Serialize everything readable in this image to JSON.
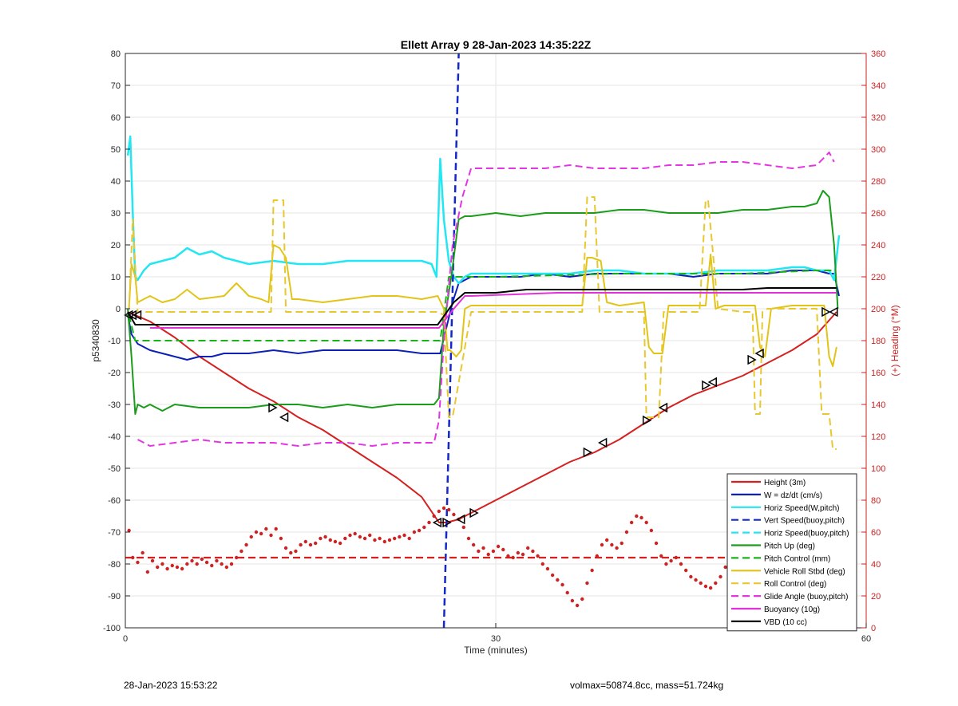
{
  "footer": {
    "timestamp": "28-Jan-2023 15:53:22",
    "summary": "volmax=50874.8cc, mass=51.724kg"
  },
  "chart_data": {
    "type": "line",
    "title": "Ellett Array 9 28-Jan-2023 14:35:22Z",
    "xlabel": "Time (minutes)",
    "ylabel": "p5340830",
    "ylabel_right": "(+) Heading (°M)",
    "xlim": [
      0,
      60
    ],
    "ylim": [
      -100,
      80
    ],
    "ylim_right": [
      0,
      360
    ],
    "x_ticks": [
      0,
      30,
      60
    ],
    "y_ticks": [
      -100,
      -90,
      -80,
      -70,
      -60,
      -50,
      -40,
      -30,
      -20,
      -10,
      0,
      10,
      20,
      30,
      40,
      50,
      60,
      70,
      80
    ],
    "y_right_ticks": [
      0,
      20,
      40,
      60,
      80,
      100,
      120,
      140,
      160,
      180,
      200,
      220,
      240,
      260,
      280,
      300,
      320,
      340,
      360
    ],
    "grid": true,
    "legend_position": "bottom-right",
    "colors": {
      "height": "#d62020",
      "w": "#0c1fb8",
      "horiz": "#22e6f2",
      "vert": "#1428c8",
      "pitch": "#1c9c1c",
      "pitch_control": "#18b418",
      "roll": "#e2c418",
      "roll_control": "#e8c830",
      "glide": "#e236e2",
      "buoyancy": "#e032d8",
      "vbd": "#000000",
      "heading": "#d02020",
      "right_axis": "#cc2020"
    },
    "legend": [
      {
        "label": "Height (3m)",
        "key": "height",
        "dash": false
      },
      {
        "label": "W = dz/dt (cm/s)",
        "key": "w",
        "dash": false
      },
      {
        "label": "Horiz Speed(W,pitch)",
        "key": "horiz",
        "dash": false
      },
      {
        "label": "Vert Speed(buoy,pitch)",
        "key": "vert",
        "dash": true
      },
      {
        "label": "Horiz Speed(buoy,pitch)",
        "key": "horiz",
        "dash": true
      },
      {
        "label": "Pitch Up (deg)",
        "key": "pitch",
        "dash": false
      },
      {
        "label": "Pitch Control (mm)",
        "key": "pitch_control",
        "dash": true
      },
      {
        "label": "Vehicle Roll Stbd (deg)",
        "key": "roll",
        "dash": false
      },
      {
        "label": "Roll Control (deg)",
        "key": "roll_control",
        "dash": true
      },
      {
        "label": "Glide Angle (buoy,pitch)",
        "key": "glide",
        "dash": true
      },
      {
        "label": "Buoyancy (10g)",
        "key": "buoyancy",
        "dash": false
      },
      {
        "label": "VBD (10 cc)",
        "key": "vbd",
        "dash": false
      }
    ],
    "series": [
      {
        "key": "height",
        "dash": false,
        "width": 2,
        "x": [
          0.2,
          2,
          4,
          6,
          8,
          10,
          12,
          14,
          16,
          18,
          20,
          22,
          24,
          25.4,
          26,
          27,
          28,
          30,
          32,
          34,
          36,
          38,
          40,
          42,
          44,
          46,
          48,
          50,
          52,
          54,
          56,
          57.6
        ],
        "y": [
          -1,
          -4,
          -9,
          -15,
          -20,
          -25,
          -29,
          -34,
          -38,
          -43,
          -48,
          -53,
          -59,
          -67,
          -67,
          -66,
          -64,
          -60,
          -56,
          -52,
          -48,
          -45,
          -41,
          -36,
          -31,
          -27,
          -24,
          -21,
          -17,
          -13,
          -8,
          -1
        ]
      },
      {
        "key": "w",
        "dash": false,
        "width": 2,
        "x": [
          0.2,
          0.5,
          1,
          2,
          3,
          4,
          5,
          6,
          7,
          8,
          10,
          12,
          14,
          16,
          18,
          20,
          22,
          24,
          25,
          25.5,
          26,
          26.5,
          27,
          27.5,
          28,
          30,
          32,
          34,
          36,
          38,
          40,
          42,
          44,
          46,
          48,
          50,
          52,
          54,
          55,
          56,
          57,
          57.4,
          57.8
        ],
        "y": [
          -2,
          -8,
          -11,
          -13,
          -14,
          -15,
          -16,
          -15,
          -15,
          -14,
          -14,
          -13,
          -14,
          -13,
          -13,
          -13,
          -13,
          -14,
          -14,
          -14,
          -6,
          2,
          8,
          9,
          10,
          10,
          10,
          11,
          10,
          11,
          11,
          11,
          11,
          10,
          11,
          11,
          11,
          12,
          12,
          12,
          11,
          11,
          4
        ]
      },
      {
        "key": "horiz",
        "dash": false,
        "width": 2.5,
        "x": [
          0.2,
          0.4,
          0.6,
          0.8,
          1,
          1.5,
          2,
          3,
          4,
          5,
          6,
          7,
          8,
          10,
          12,
          14,
          16,
          18,
          20,
          22,
          24,
          24.8,
          25.2,
          25.5,
          25.8,
          26.2,
          26.6,
          27,
          27.5,
          28,
          30,
          32,
          34,
          36,
          38,
          40,
          42,
          44,
          46,
          48,
          50,
          52,
          54,
          55,
          56,
          57,
          57.4,
          57.8
        ],
        "y": [
          48,
          54,
          30,
          10,
          9,
          12,
          14,
          15,
          16,
          19,
          17,
          18,
          16,
          14,
          15,
          14,
          14,
          15,
          15,
          15,
          15,
          14,
          10,
          47,
          28,
          15,
          10,
          8,
          10,
          11,
          11,
          11,
          11,
          11,
          12,
          12,
          11,
          11,
          11,
          12,
          12,
          12,
          13,
          13,
          12,
          12,
          9,
          23
        ]
      },
      {
        "key": "vert",
        "dash": true,
        "width": 2.5,
        "x": [
          25.8,
          27
        ],
        "y": [
          -100,
          80
        ]
      },
      {
        "key": "pitch",
        "dash": false,
        "width": 2,
        "x": [
          0.2,
          0.5,
          0.8,
          1,
          1.5,
          2,
          3,
          4,
          6,
          8,
          10,
          12,
          14,
          16,
          18,
          20,
          22,
          24,
          25,
          25.4,
          25.8,
          26.4,
          27,
          27.5,
          28,
          30,
          32,
          34,
          36,
          38,
          40,
          42,
          44,
          46,
          48,
          50,
          52,
          54,
          55,
          56,
          56.5,
          57,
          57.4,
          57.7
        ],
        "y": [
          0,
          -15,
          -33,
          -30,
          -31,
          -30,
          -32,
          -30,
          -31,
          -31,
          -31,
          -30,
          -30,
          -31,
          -30,
          -31,
          -30,
          -30,
          -30,
          -28,
          -5,
          10,
          28,
          29,
          29,
          30,
          29,
          30,
          30,
          30,
          31,
          31,
          30,
          30,
          30,
          31,
          31,
          32,
          32,
          33,
          37,
          35,
          20,
          0
        ]
      },
      {
        "key": "pitch_control",
        "dash": true,
        "width": 2,
        "x": [
          0.3,
          0.8,
          2,
          10,
          20,
          25.5,
          26.2,
          30,
          40,
          50,
          56,
          57.5
        ],
        "y": [
          -2,
          -10,
          -10,
          -10,
          -10,
          -10,
          10,
          10,
          11,
          11,
          12,
          12
        ]
      },
      {
        "key": "roll",
        "dash": false,
        "width": 2,
        "x": [
          0.3,
          0.5,
          0.8,
          1,
          2,
          3,
          4,
          5,
          6,
          8,
          9,
          10,
          11,
          11.6,
          12,
          12.5,
          13,
          13.5,
          14,
          16,
          18,
          20,
          22,
          24,
          25.3,
          25.8,
          26.1,
          26.3,
          26.8,
          27.2,
          27.5,
          28,
          30,
          32,
          34,
          36,
          37,
          37.4,
          37.8,
          38.5,
          39,
          40,
          42,
          42.4,
          42.8,
          43.5,
          44,
          46,
          47,
          47.4,
          47.8,
          48.5,
          50,
          51,
          51.4,
          51.8,
          52.3,
          54,
          56,
          56.6,
          57,
          57.3,
          57.6
        ],
        "y": [
          0,
          14,
          10,
          2,
          4,
          2,
          3,
          6,
          3,
          4,
          8,
          4,
          3,
          2,
          20,
          19,
          16,
          3,
          3,
          2,
          3,
          4,
          4,
          3,
          4,
          0,
          -13,
          -13,
          -15,
          -13,
          0,
          1,
          1,
          1,
          1,
          1,
          1,
          16,
          16,
          15,
          2,
          1,
          2,
          -12,
          -14,
          -14,
          1,
          1,
          1,
          17,
          0,
          1,
          1,
          1,
          -12,
          -15,
          0,
          1,
          1,
          1,
          -15,
          -18,
          -12
        ]
      },
      {
        "key": "roll_control",
        "dash": true,
        "width": 2,
        "x": [
          0.3,
          0.6,
          1,
          2,
          10,
          11.8,
          12,
          12.8,
          13,
          14,
          25.3,
          25.8,
          26.2,
          26.5,
          28,
          29,
          36,
          37,
          37.4,
          38,
          38.4,
          39,
          42,
          42.2,
          42.6,
          43.2,
          43.6,
          44,
          46,
          46.5,
          47,
          47.2,
          48,
          50,
          50.8,
          51,
          51.4,
          51.6,
          52,
          56,
          56.4,
          57,
          57.3,
          57.6
        ],
        "y": [
          0,
          28,
          -1,
          -1,
          -1,
          -1,
          34,
          34,
          -1,
          -1,
          -1,
          -2,
          -34,
          -34,
          -1,
          -1,
          -1,
          -1,
          35,
          35,
          -1,
          -1,
          -1,
          -34,
          -34,
          -34,
          -1,
          -1,
          -1,
          -1,
          34,
          34,
          0,
          -1,
          -1,
          -33,
          -33,
          -1,
          0,
          0,
          -33,
          -33,
          -44,
          -44
        ]
      },
      {
        "key": "glide",
        "dash": true,
        "width": 2,
        "x": [
          1,
          2,
          4,
          6,
          8,
          10,
          12,
          14,
          16,
          18,
          20,
          22,
          24,
          25,
          25.4,
          25.8,
          26.5,
          27.3,
          28,
          30,
          32,
          34,
          36,
          38,
          40,
          42,
          44,
          46,
          48,
          50,
          52,
          54,
          56,
          57,
          57.4
        ],
        "y": [
          -41,
          -43,
          -42,
          -41,
          -42,
          -42,
          -42,
          -43,
          -42,
          -42,
          -43,
          -42,
          -42,
          -42,
          -35,
          -10,
          20,
          35,
          44,
          44,
          44,
          44,
          45,
          44,
          44,
          44,
          45,
          45,
          46,
          46,
          45,
          44,
          45,
          49,
          46
        ]
      },
      {
        "key": "buoyancy",
        "dash": false,
        "width": 2,
        "x": [
          2,
          10,
          20,
          25.4,
          26.6,
          27.5,
          28,
          35,
          45,
          57.6
        ],
        "y": [
          -6,
          -6,
          -6,
          -6,
          0,
          4,
          4,
          5,
          5,
          5
        ]
      },
      {
        "key": "vbd",
        "dash": false,
        "width": 2,
        "x": [
          0.2,
          0.8,
          2,
          10,
          20,
          25.3,
          26.6,
          27.5,
          30,
          32.5,
          34,
          40,
          44,
          48,
          50,
          52,
          57.6
        ],
        "y": [
          -1,
          -5,
          -5,
          -5,
          -5,
          -5,
          2,
          5,
          5,
          6,
          6,
          6,
          6,
          6,
          6,
          6.5,
          6.5
        ]
      },
      {
        "key": "height_ref",
        "color_key": "height",
        "dash": true,
        "width": 2.2,
        "x": [
          0,
          57.6
        ],
        "y": [
          -78,
          -78
        ]
      }
    ],
    "heading_points": {
      "axis": "right",
      "x": [
        0.3,
        0.6,
        1,
        1.4,
        1.8,
        2.2,
        2.6,
        3,
        3.4,
        3.8,
        4.2,
        4.6,
        5,
        5.4,
        5.8,
        6.2,
        6.6,
        7,
        7.4,
        7.8,
        8.2,
        8.6,
        9,
        9.4,
        9.8,
        10.2,
        10.6,
        11,
        11.4,
        11.8,
        12.2,
        12.6,
        13,
        13.4,
        13.8,
        14.2,
        14.6,
        15,
        15.4,
        15.8,
        16.2,
        16.6,
        17,
        17.4,
        17.8,
        18.2,
        18.6,
        19,
        19.4,
        19.8,
        20.2,
        20.6,
        21,
        21.4,
        21.8,
        22.2,
        22.6,
        23,
        23.4,
        23.8,
        24.2,
        24.6,
        25,
        25.4,
        25.8,
        26.2,
        26.6,
        27,
        27.4,
        27.8,
        28.2,
        28.6,
        29,
        29.4,
        29.8,
        30.2,
        30.6,
        31,
        31.4,
        31.8,
        32.2,
        32.6,
        33,
        33.4,
        33.8,
        34.2,
        34.6,
        35,
        35.4,
        35.8,
        36.2,
        36.6,
        37,
        37.4,
        37.8,
        38.2,
        38.6,
        39,
        39.4,
        39.8,
        40.2,
        40.6,
        41,
        41.4,
        41.8,
        42.2,
        42.6,
        43,
        43.4,
        43.8,
        44.2,
        44.6,
        45,
        45.4,
        45.8,
        46.2,
        46.6,
        47,
        47.4,
        47.8,
        48.2,
        48.6,
        49,
        49.4,
        49.8,
        50.2,
        50.6,
        51,
        51.4,
        51.8,
        52.2,
        52.6,
        53,
        53.4,
        53.8,
        54.2,
        54.6,
        55,
        55.4,
        55.8,
        56.2,
        56.6,
        57,
        57.4
      ],
      "y": [
        61,
        44,
        41,
        47,
        35,
        42,
        38,
        40,
        37,
        39,
        38,
        37,
        40,
        42,
        40,
        43,
        41,
        39,
        42,
        40,
        38,
        40,
        44,
        48,
        52,
        57,
        60,
        59,
        62,
        58,
        62,
        56,
        50,
        47,
        48,
        52,
        54,
        52,
        53,
        56,
        57,
        55,
        54,
        53,
        56,
        58,
        59,
        57,
        56,
        58,
        55,
        56,
        54,
        55,
        56,
        57,
        58,
        56,
        60,
        61,
        63,
        66,
        70,
        73,
        75,
        74,
        71,
        68,
        63,
        56,
        52,
        48,
        50,
        46,
        48,
        51,
        49,
        45,
        44,
        47,
        46,
        50,
        48,
        45,
        40,
        37,
        33,
        30,
        27,
        22,
        17,
        14,
        18,
        28,
        36,
        45,
        52,
        55,
        52,
        50,
        53,
        60,
        66,
        70,
        69,
        66,
        61,
        53,
        45,
        40,
        42,
        44,
        40,
        36,
        32,
        30,
        28,
        26,
        25,
        28,
        32,
        38,
        44,
        47,
        49,
        52,
        50,
        48,
        52,
        54,
        50,
        46,
        48,
        50,
        53,
        49,
        47,
        51,
        49,
        52,
        48,
        46,
        51,
        53
      ]
    },
    "markers": {
      "x": [
        0.3,
        0.6,
        1,
        11.9,
        12.9,
        25.3,
        26.0,
        27.2,
        28.2,
        37.4,
        38.7,
        42.2,
        43.6,
        47.0,
        47.6,
        50.7,
        51.4,
        56.7,
        57.4
      ],
      "y": [
        -2,
        -2,
        -2,
        -31,
        -34,
        -67,
        -67,
        -66,
        -64,
        -45,
        -42,
        -35,
        -31,
        -24,
        -23,
        -16,
        -14,
        -1,
        -1
      ],
      "direction": [
        "l",
        "l",
        "l",
        "r",
        "l",
        "l",
        "r",
        "l",
        "r",
        "r",
        "l",
        "r",
        "l",
        "r",
        "l",
        "r",
        "l",
        "r",
        "l"
      ]
    }
  }
}
